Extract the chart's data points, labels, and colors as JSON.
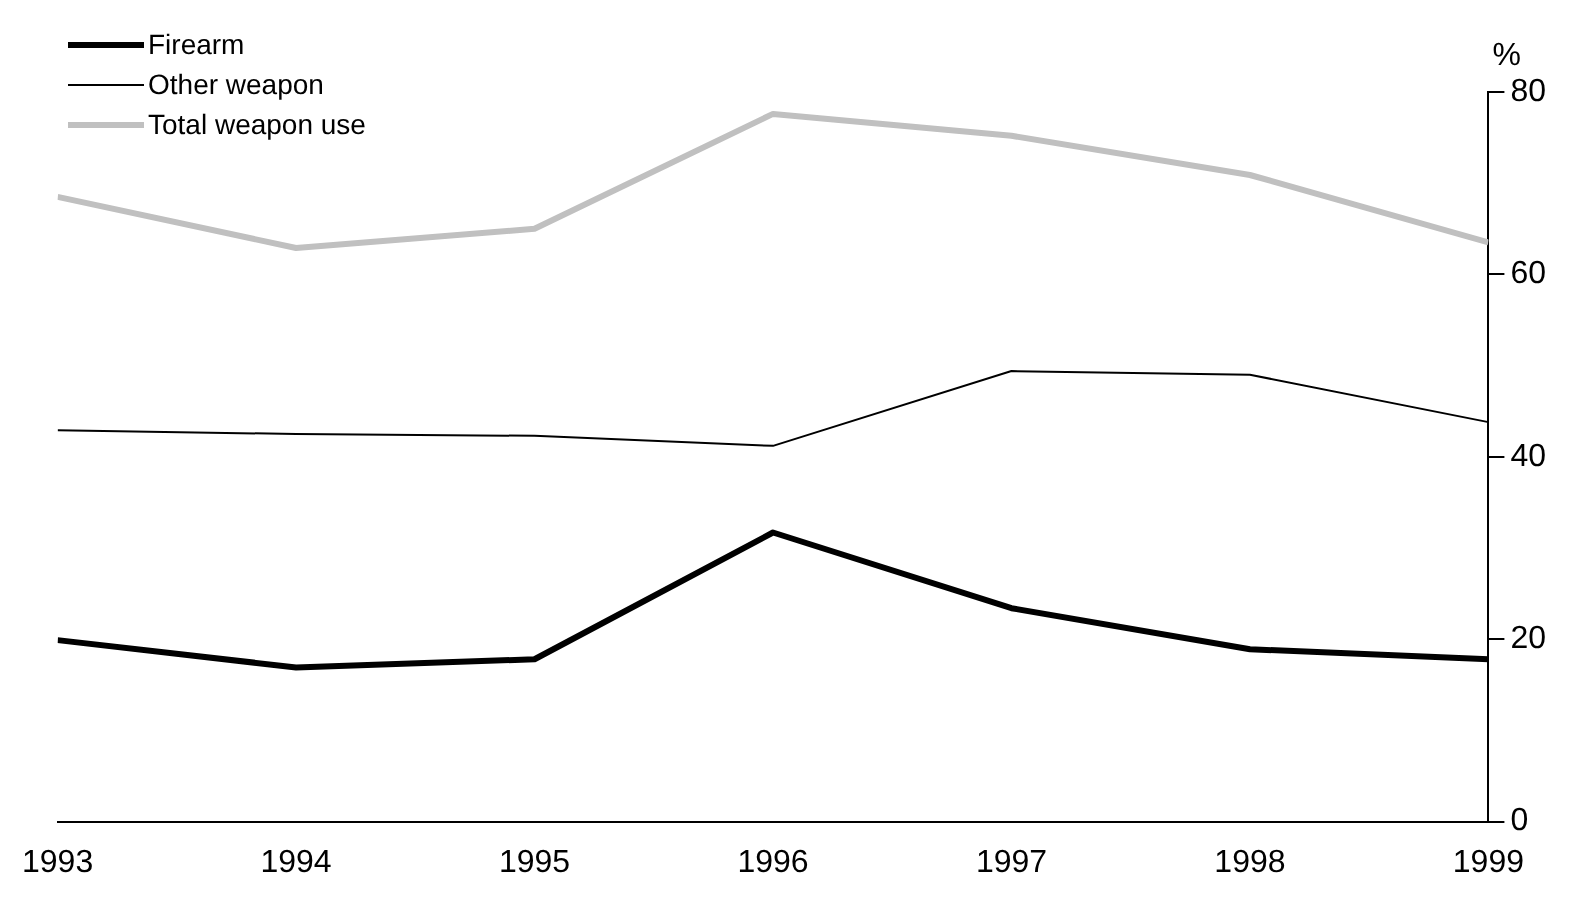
{
  "chart_data": {
    "type": "line",
    "ylabel": "%",
    "x": [
      1993,
      1994,
      1995,
      1996,
      1997,
      1998,
      1999
    ],
    "xlim": [
      1993,
      1999
    ],
    "xticks": [
      1993,
      1994,
      1995,
      1996,
      1997,
      1998,
      1999
    ],
    "ylim": [
      0,
      80
    ],
    "yticks": [
      0,
      20,
      40,
      60,
      80
    ],
    "grid": false,
    "legend": "top left",
    "marker": "none",
    "series": [
      {
        "name": "Firearm",
        "color": "#000000",
        "values": [
          19.9,
          16.9,
          17.8,
          31.7,
          23.4,
          18.9,
          17.8
        ]
      },
      {
        "name": "Other weapon",
        "color": "#000000",
        "values": [
          42.9,
          42.5,
          42.3,
          41.2,
          49.4,
          49.0,
          43.8
        ]
      },
      {
        "name": "Total weapon use",
        "color": "#c0c0c0",
        "values": [
          68.5,
          62.9,
          65.0,
          77.6,
          75.2,
          70.9,
          63.5
        ]
      }
    ]
  }
}
